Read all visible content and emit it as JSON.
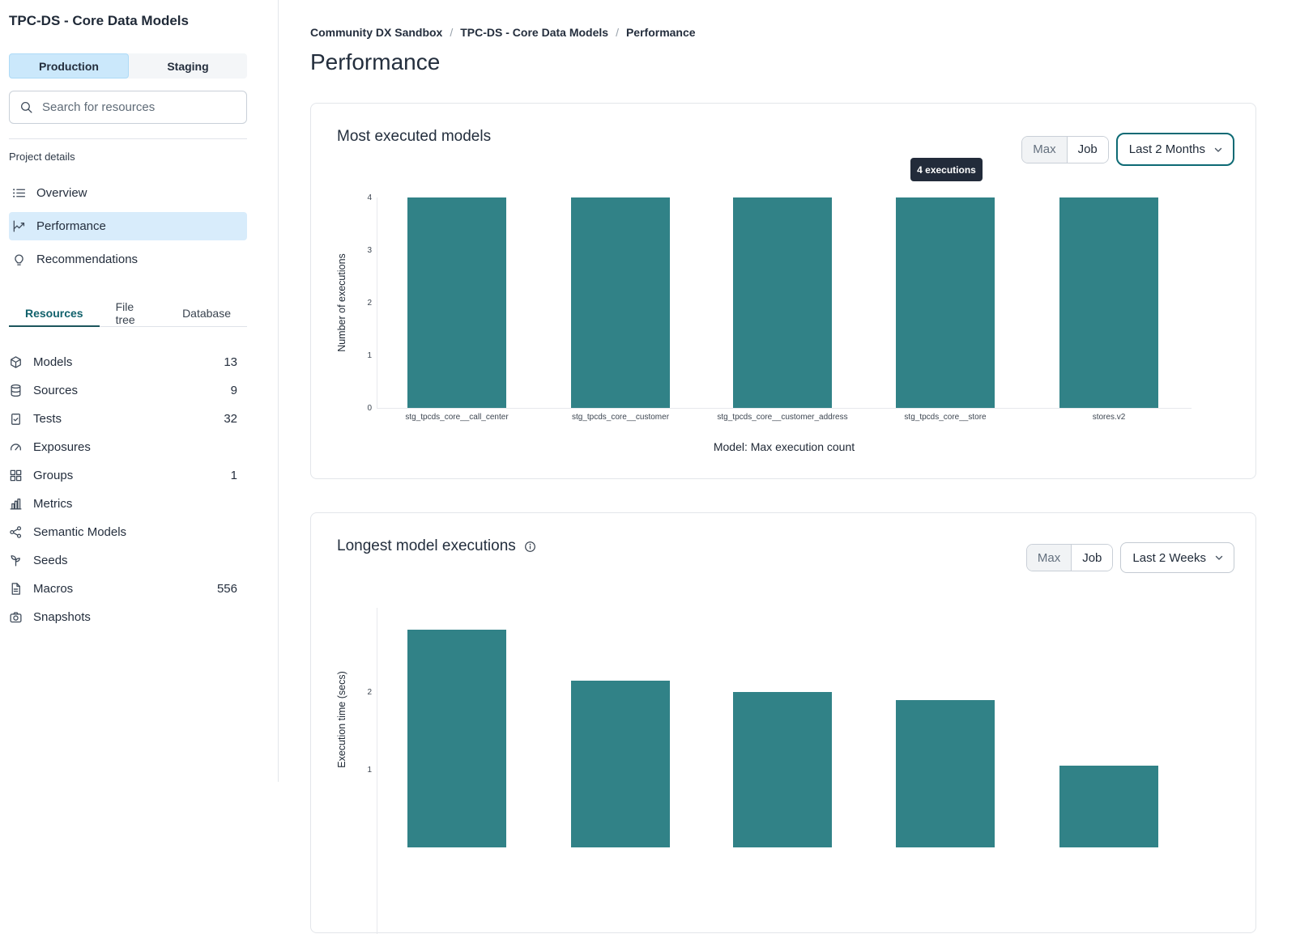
{
  "sidebar": {
    "project_title": "TPC-DS - Core Data Models",
    "env_tabs": [
      {
        "label": "Production",
        "active": true
      },
      {
        "label": "Staging",
        "active": false
      }
    ],
    "search": {
      "placeholder": "Search for resources"
    },
    "section_label": "Project details",
    "nav": [
      {
        "label": "Overview",
        "icon": "list",
        "active": false
      },
      {
        "label": "Performance",
        "icon": "line-chart",
        "active": true
      },
      {
        "label": "Recommendations",
        "icon": "lightbulb",
        "active": false
      }
    ],
    "resource_tabs": [
      {
        "label": "Resources",
        "active": true
      },
      {
        "label": "File tree",
        "active": false
      },
      {
        "label": "Database",
        "active": false
      }
    ],
    "resources": [
      {
        "label": "Models",
        "count": "13",
        "icon": "cube"
      },
      {
        "label": "Sources",
        "count": "9",
        "icon": "database"
      },
      {
        "label": "Tests",
        "count": "32",
        "icon": "clipboard-check"
      },
      {
        "label": "Exposures",
        "count": "",
        "icon": "gauge"
      },
      {
        "label": "Groups",
        "count": "1",
        "icon": "grid"
      },
      {
        "label": "Metrics",
        "count": "",
        "icon": "bar-chart"
      },
      {
        "label": "Semantic Models",
        "count": "",
        "icon": "share-nodes"
      },
      {
        "label": "Seeds",
        "count": "",
        "icon": "seedling"
      },
      {
        "label": "Macros",
        "count": "556",
        "icon": "document"
      },
      {
        "label": "Snapshots",
        "count": "",
        "icon": "camera"
      }
    ]
  },
  "breadcrumb": {
    "separator": "/",
    "items": [
      {
        "label": "Community DX Sandbox",
        "current": false
      },
      {
        "label": "TPC-DS - Core Data Models",
        "current": false
      },
      {
        "label": "Performance",
        "current": true
      }
    ]
  },
  "page_title": "Performance",
  "colors": {
    "bar": "#318287",
    "accent_teal": "#11616b",
    "selection_blue": "#cbe8fb",
    "tooltip_background": "#222b3a"
  },
  "chart_data": [
    {
      "type": "bar",
      "title": "Most executed models",
      "categories": [
        "stg_tpcds_core__call_center",
        "stg_tpcds_core__customer",
        "stg_tpcds_core__customer_address",
        "stg_tpcds_core__store",
        "stores.v2"
      ],
      "values": [
        4,
        4,
        4,
        4,
        4
      ],
      "ylabel": "Number of executions",
      "xlabel": "Model: Max execution count",
      "ylim": [
        0,
        4
      ],
      "yticks": [
        0,
        1,
        2,
        3,
        4
      ],
      "grid": false,
      "legend": false,
      "bar_color": "#318287",
      "tooltip": "4 executions",
      "info_icon": false,
      "controls": {
        "buttons": [
          "Max",
          "Job"
        ],
        "selected_button": "Max",
        "dropdown_value": "Last 2 Months",
        "dropdown_focused": true
      }
    },
    {
      "type": "bar",
      "title": "Longest model executions",
      "values": [
        2.8,
        2.15,
        2.0,
        1.9,
        1.05
      ],
      "ylabel": "Execution time (secs)",
      "ylim": [
        0,
        3
      ],
      "yticks": [
        1,
        2
      ],
      "grid": false,
      "legend": false,
      "bar_color": "#318287",
      "info_icon": true,
      "controls": {
        "buttons": [
          "Max",
          "Job"
        ],
        "selected_button": "Max",
        "dropdown_value": "Last 2 Weeks",
        "dropdown_focused": false
      }
    }
  ]
}
